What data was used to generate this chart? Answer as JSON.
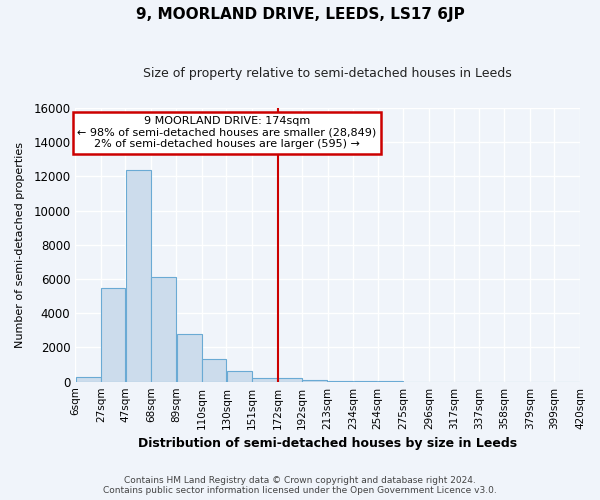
{
  "title": "9, MOORLAND DRIVE, LEEDS, LS17 6JP",
  "subtitle": "Size of property relative to semi-detached houses in Leeds",
  "xlabel": "Distribution of semi-detached houses by size in Leeds",
  "ylabel": "Number of semi-detached properties",
  "bar_color": "#ccdcec",
  "bar_edge_color": "#6aaad4",
  "background_color": "#f0f4fa",
  "grid_color": "#ffffff",
  "vline_x": 172,
  "vline_color": "#cc0000",
  "bin_edges": [
    6,
    27,
    47,
    68,
    89,
    110,
    130,
    151,
    172,
    192,
    213,
    234,
    254,
    275,
    296,
    317,
    337,
    358,
    379,
    399,
    420
  ],
  "bin_heights": [
    300,
    5500,
    12400,
    6100,
    2800,
    1300,
    600,
    200,
    200,
    100,
    50,
    30,
    20,
    0,
    0,
    0,
    0,
    0,
    0,
    0
  ],
  "ylim": [
    0,
    16000
  ],
  "yticks": [
    0,
    2000,
    4000,
    6000,
    8000,
    10000,
    12000,
    14000,
    16000
  ],
  "xtick_labels": [
    "6sqm",
    "27sqm",
    "47sqm",
    "68sqm",
    "89sqm",
    "110sqm",
    "130sqm",
    "151sqm",
    "172sqm",
    "192sqm",
    "213sqm",
    "234sqm",
    "254sqm",
    "275sqm",
    "296sqm",
    "317sqm",
    "337sqm",
    "358sqm",
    "379sqm",
    "399sqm",
    "420sqm"
  ],
  "annotation_title": "9 MOORLAND DRIVE: 174sqm",
  "annotation_line1": "← 98% of semi-detached houses are smaller (28,849)",
  "annotation_line2": "2% of semi-detached houses are larger (595) →",
  "annotation_box_color": "#ffffff",
  "annotation_box_edge_color": "#cc0000",
  "footer_line1": "Contains HM Land Registry data © Crown copyright and database right 2024.",
  "footer_line2": "Contains public sector information licensed under the Open Government Licence v3.0."
}
